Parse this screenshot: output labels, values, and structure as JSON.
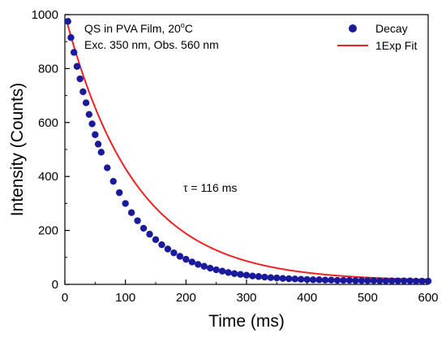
{
  "chart_data": {
    "type": "scatter",
    "xlabel": "Time (ms)",
    "ylabel": "Intensity (Counts)",
    "xlim": [
      0,
      600
    ],
    "ylim": [
      0,
      1000
    ],
    "xticks": [
      0,
      100,
      200,
      300,
      400,
      500,
      600
    ],
    "yticks": [
      0,
      200,
      400,
      600,
      800,
      1000
    ],
    "xtick_labels": [
      "0",
      "100",
      "200",
      "300",
      "400",
      "500",
      "600"
    ],
    "ytick_labels": [
      "0",
      "200",
      "400",
      "600",
      "800",
      "1000"
    ],
    "grid": false,
    "legend_position": "top-right",
    "annotations": {
      "line1_main": "QS in PVA Film, 20",
      "line1_sup": "o",
      "line1_end": "C",
      "line2": "Exc. 350 nm, Obs. 560 nm",
      "tau": "τ = 116 ms"
    },
    "colors": {
      "decay": "#1a1a9c",
      "fit": "#ee2222"
    },
    "series": [
      {
        "name": "Decay",
        "kind": "scatter",
        "x": [
          5,
          10,
          15,
          20,
          25,
          30,
          35,
          40,
          45,
          50,
          55,
          60,
          70,
          80,
          90,
          100,
          110,
          120,
          130,
          140,
          150,
          160,
          170,
          180,
          190,
          200,
          210,
          220,
          230,
          240,
          250,
          260,
          270,
          280,
          290,
          300,
          310,
          320,
          330,
          340,
          350,
          360,
          370,
          380,
          390,
          400,
          410,
          420,
          430,
          440,
          450,
          460,
          470,
          480,
          490,
          500,
          510,
          520,
          530,
          540,
          550,
          560,
          570,
          580,
          590,
          600
        ],
        "y": [
          975,
          915,
          860,
          808,
          762,
          714,
          673,
          630,
          595,
          555,
          520,
          490,
          432,
          382,
          340,
          300,
          266,
          236,
          208,
          186,
          166,
          147,
          131,
          117,
          104,
          93,
          83,
          74,
          67,
          60,
          54,
          49,
          44,
          40,
          37,
          34,
          31,
          29,
          27,
          25,
          24,
          22,
          21,
          20,
          19,
          18,
          17,
          17,
          16,
          16,
          15,
          15,
          15,
          14,
          14,
          14,
          14,
          13,
          13,
          13,
          13,
          13,
          13,
          12,
          12,
          12
        ]
      },
      {
        "name": "1Exp Fit",
        "kind": "line",
        "tau": 116,
        "amplitude": 990,
        "offset": 12
      }
    ]
  }
}
